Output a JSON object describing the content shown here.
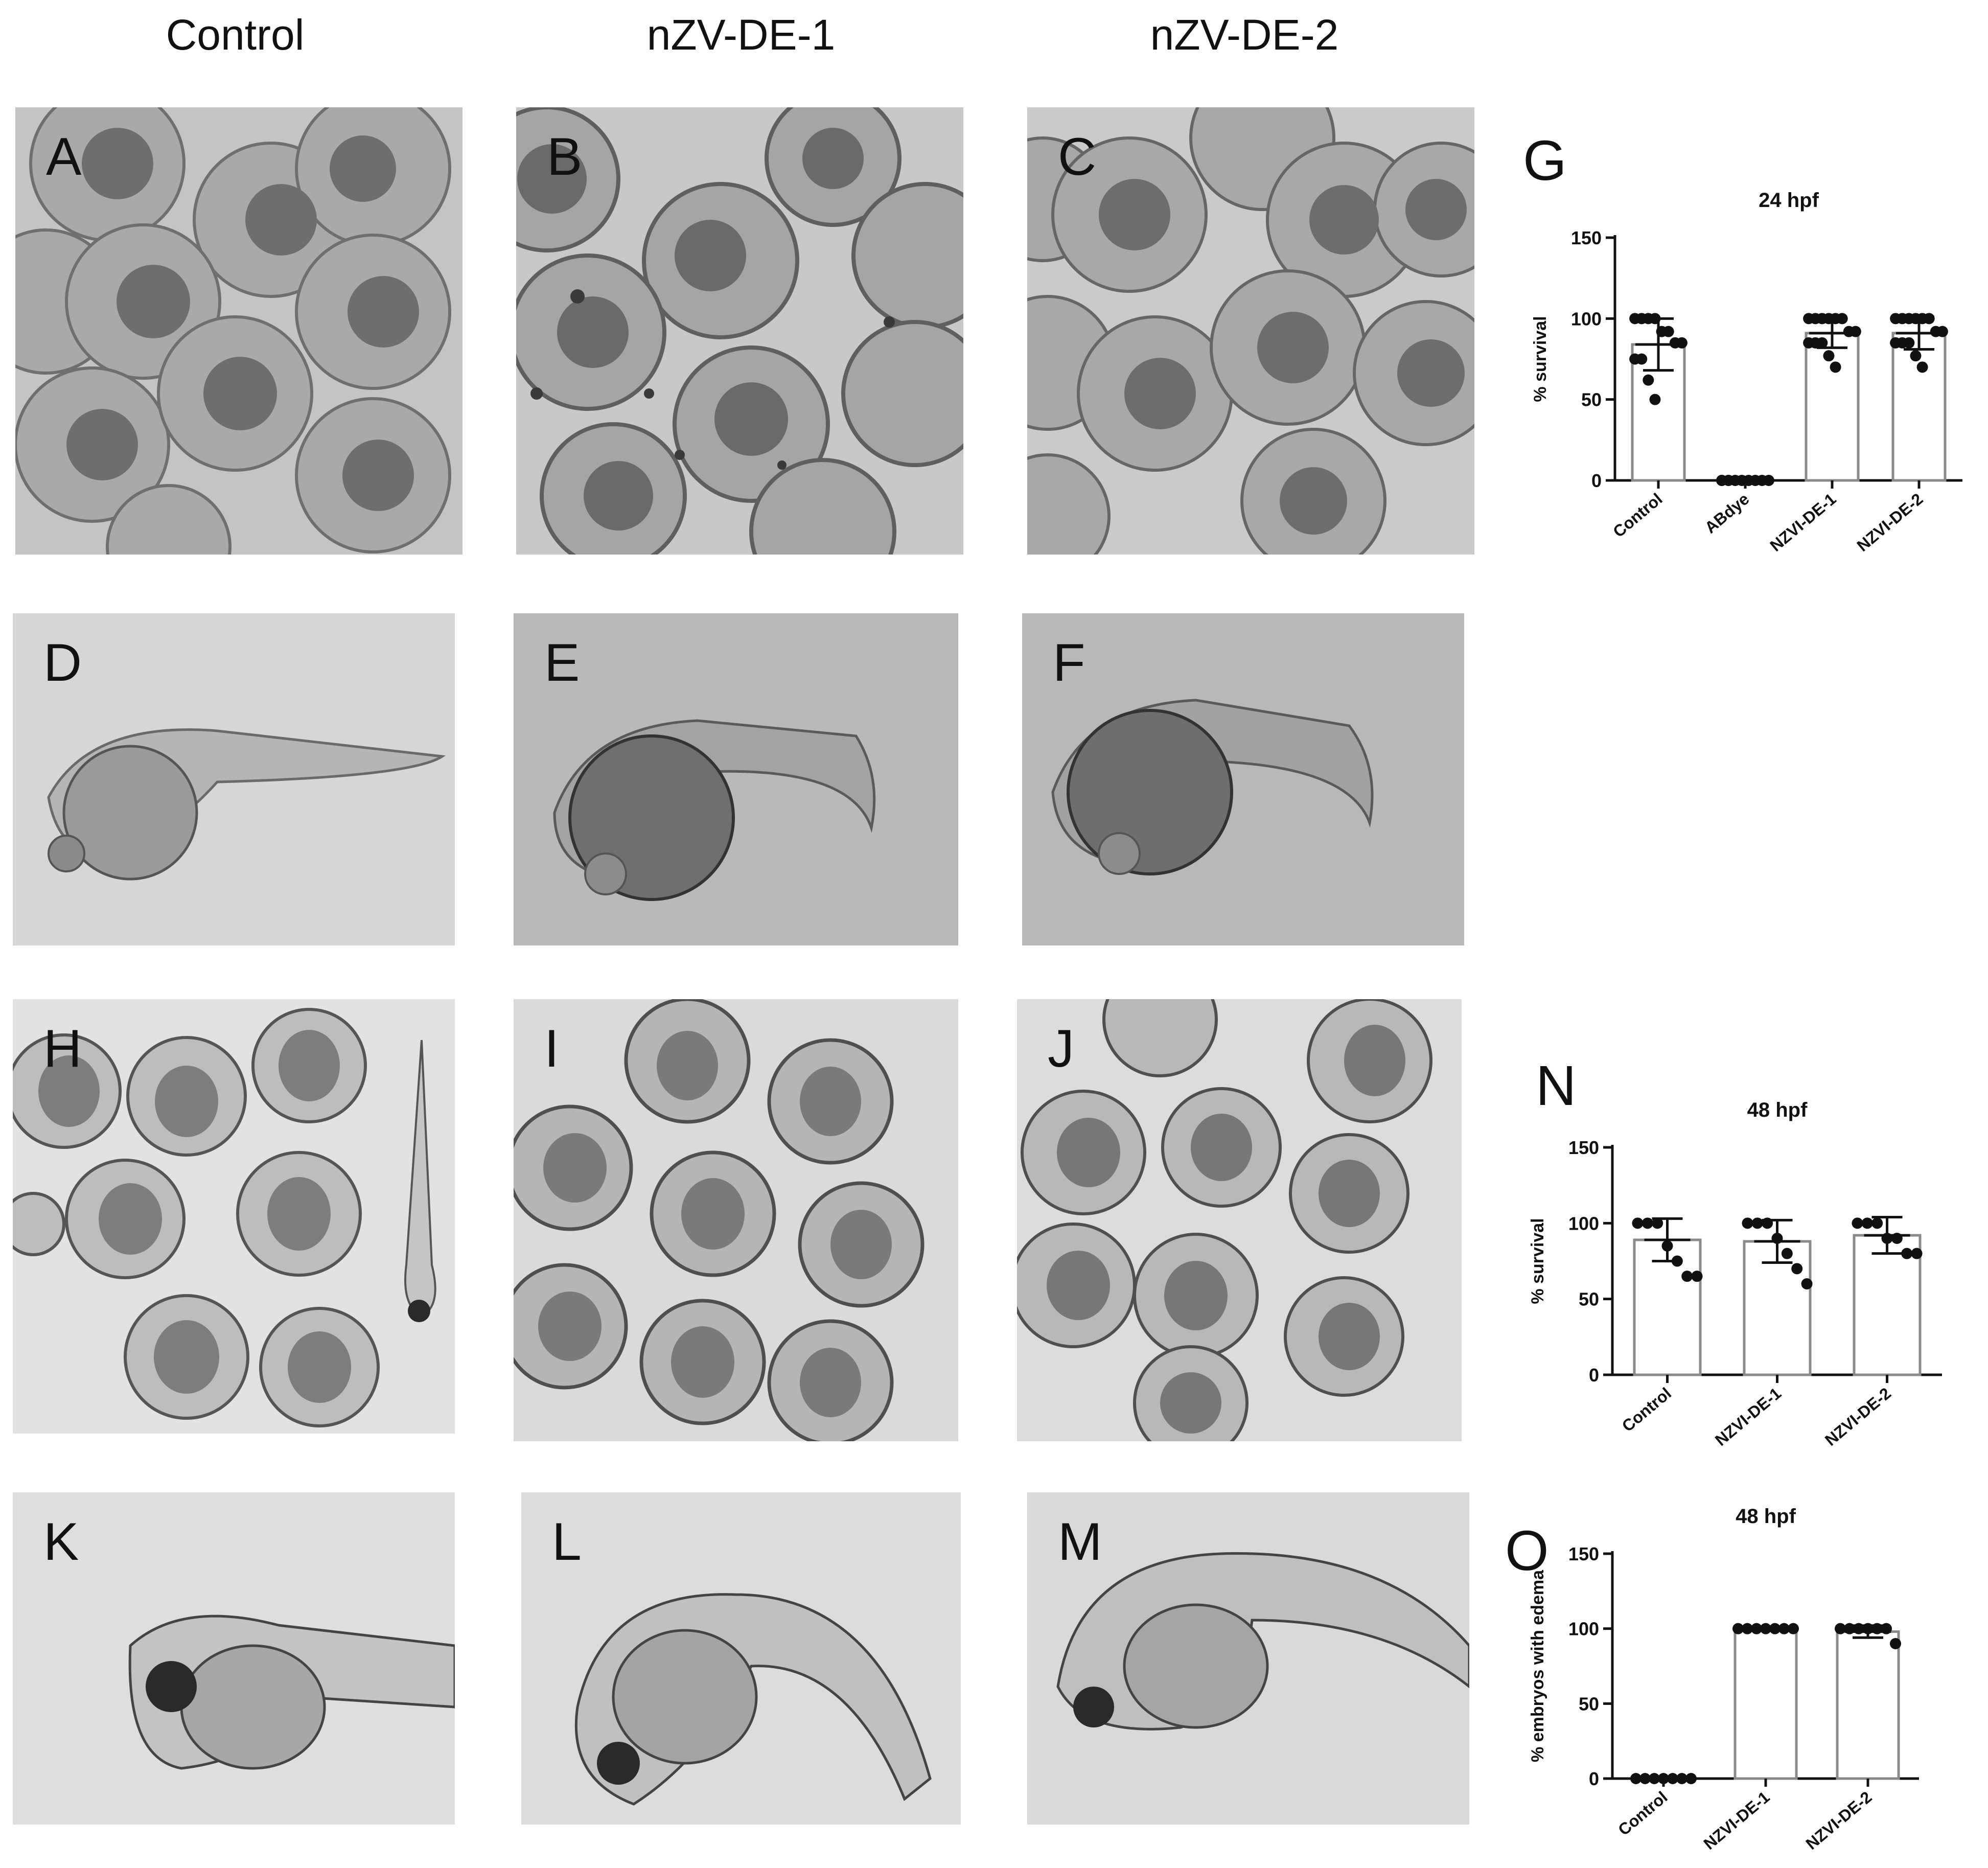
{
  "columns": [
    "Control",
    "nZV-DE-1",
    "nZV-DE-2"
  ],
  "panels": [
    "A",
    "B",
    "C",
    "D",
    "E",
    "F",
    "H",
    "I",
    "J",
    "K",
    "L",
    "M"
  ],
  "chart_letters": [
    "G",
    "N",
    "O"
  ],
  "chart_data": [
    {
      "type": "bar",
      "title": "24 hpf",
      "ylabel": "% survival",
      "xlabel": "",
      "ylim": [
        0,
        150
      ],
      "yticks": [
        0,
        50,
        100,
        150
      ],
      "categories": [
        "Control",
        "ABdye",
        "NZVI-DE-1",
        "NZVI-DE-2"
      ],
      "values": [
        84,
        0,
        91,
        91
      ],
      "error_sd": [
        16,
        0,
        9,
        10
      ],
      "points": [
        [
          100,
          100,
          100,
          100,
          92,
          92,
          85,
          85,
          75,
          75,
          62,
          50
        ],
        [
          0,
          0,
          0,
          0,
          0,
          0,
          0,
          0,
          0,
          0
        ],
        [
          100,
          100,
          100,
          100,
          100,
          100,
          92,
          92,
          85,
          85,
          85,
          77,
          70
        ],
        [
          100,
          100,
          100,
          100,
          100,
          100,
          92,
          92,
          85,
          85,
          85,
          77,
          70
        ]
      ]
    },
    {
      "type": "bar",
      "title": "48 hpf",
      "ylabel": "% survival",
      "xlabel": "",
      "ylim": [
        0,
        150
      ],
      "yticks": [
        0,
        50,
        100,
        150
      ],
      "categories": [
        "Control",
        "NZVI-DE-1",
        "NZVI-DE-2"
      ],
      "values": [
        89,
        88,
        92
      ],
      "error_sd": [
        14,
        14,
        12
      ],
      "points": [
        [
          100,
          100,
          100,
          85,
          75,
          65,
          65
        ],
        [
          100,
          100,
          100,
          90,
          80,
          70,
          60
        ],
        [
          100,
          100,
          100,
          90,
          90,
          80,
          80
        ]
      ]
    },
    {
      "type": "bar",
      "title": "48 hpf",
      "ylabel": "% embryos with edema",
      "xlabel": "",
      "ylim": [
        0,
        150
      ],
      "yticks": [
        0,
        50,
        100,
        150
      ],
      "categories": [
        "Control",
        "NZVI-DE-1",
        "NZVI-DE-2"
      ],
      "values": [
        0,
        100,
        98
      ],
      "error_sd": [
        0,
        0,
        4
      ],
      "points": [
        [
          0,
          0,
          0,
          0,
          0,
          0,
          0
        ],
        [
          100,
          100,
          100,
          100,
          100,
          100,
          100
        ],
        [
          100,
          100,
          100,
          100,
          100,
          100,
          90
        ]
      ]
    }
  ]
}
